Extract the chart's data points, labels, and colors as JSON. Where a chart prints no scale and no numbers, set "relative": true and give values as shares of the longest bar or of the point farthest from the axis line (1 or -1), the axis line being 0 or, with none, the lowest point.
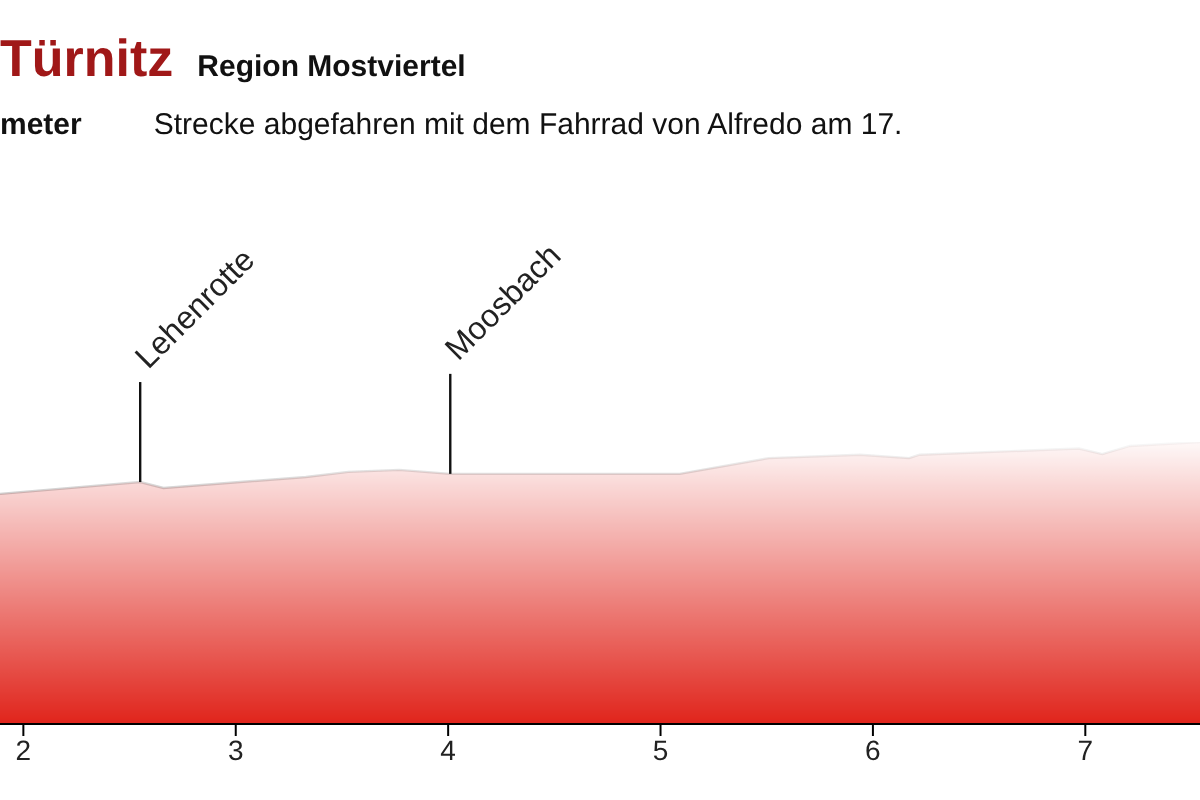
{
  "chart_data": {
    "type": "area",
    "title": "Türnitz",
    "subtitle": "Region Mostviertel",
    "relative": true,
    "color": "#e0241b",
    "x": [
      1.89,
      2.55,
      2.66,
      3.33,
      3.53,
      3.77,
      4.01,
      5.09,
      5.51,
      5.94,
      6.17,
      6.22,
      6.97,
      7.08,
      7.21,
      7.54
    ],
    "values": [
      0.816,
      0.858,
      0.837,
      0.876,
      0.894,
      0.901,
      0.887,
      0.887,
      0.943,
      0.955,
      0.943,
      0.955,
      0.977,
      0.957,
      0.986,
      1.0
    ],
    "xlim": [
      1.89,
      7.54
    ],
    "xticks": [
      2,
      3,
      4,
      5,
      6,
      7
    ],
    "annotations": [
      "meter",
      "Strecke abgefahren mit dem Fahrrad von Alfredo am 17.",
      {
        "text": "Lehenrotte",
        "x": 2.55,
        "y": 0.858
      },
      {
        "text": "Moosbach",
        "x": 4.01,
        "y": 0.887
      }
    ]
  }
}
